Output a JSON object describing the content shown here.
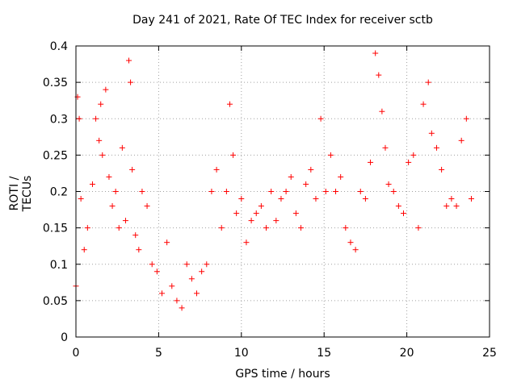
{
  "chart_data": {
    "type": "scatter",
    "title": "Day 241 of 2021, Rate Of TEC Index for receiver sctb",
    "xlabel": "GPS time / hours",
    "ylabel": "ROTI / TECUs",
    "xlim": [
      0,
      25
    ],
    "ylim": [
      0,
      0.4
    ],
    "x_ticks": [
      "0",
      "5",
      "10",
      "15",
      "20",
      "25"
    ],
    "y_ticks": [
      "0",
      "0.05",
      "0.1",
      "0.15",
      "0.2",
      "0.25",
      "0.3",
      "0.35",
      "0.4"
    ],
    "grid": true,
    "marker": "+",
    "series": [
      {
        "name": "ROTI",
        "color": "#ff0000",
        "x": [
          0.0,
          0.1,
          0.2,
          0.3,
          0.5,
          0.7,
          1.0,
          1.2,
          1.4,
          1.5,
          1.6,
          1.8,
          2.0,
          2.2,
          2.4,
          2.6,
          2.8,
          3.0,
          3.2,
          3.3,
          3.4,
          3.6,
          3.8,
          4.0,
          4.3,
          4.6,
          4.9,
          5.2,
          5.5,
          5.8,
          6.1,
          6.4,
          6.7,
          7.0,
          7.3,
          7.6,
          7.9,
          8.2,
          8.5,
          8.8,
          9.1,
          9.3,
          9.5,
          9.7,
          10.0,
          10.3,
          10.6,
          10.9,
          11.2,
          11.5,
          11.8,
          12.1,
          12.4,
          12.7,
          13.0,
          13.3,
          13.6,
          13.9,
          14.2,
          14.5,
          14.8,
          15.1,
          15.4,
          15.7,
          16.0,
          16.3,
          16.6,
          16.9,
          17.2,
          17.5,
          17.8,
          18.1,
          18.3,
          18.5,
          18.7,
          18.9,
          19.2,
          19.5,
          19.8,
          20.1,
          20.4,
          20.7,
          21.0,
          21.3,
          21.5,
          21.8,
          22.1,
          22.4,
          22.7,
          23.0,
          23.3,
          23.6,
          23.9
        ],
        "values": [
          0.07,
          0.33,
          0.3,
          0.19,
          0.12,
          0.15,
          0.21,
          0.3,
          0.27,
          0.32,
          0.25,
          0.34,
          0.22,
          0.18,
          0.2,
          0.15,
          0.26,
          0.16,
          0.38,
          0.35,
          0.23,
          0.14,
          0.12,
          0.2,
          0.18,
          0.1,
          0.09,
          0.06,
          0.13,
          0.07,
          0.05,
          0.04,
          0.1,
          0.08,
          0.06,
          0.09,
          0.1,
          0.2,
          0.23,
          0.15,
          0.2,
          0.32,
          0.25,
          0.17,
          0.19,
          0.13,
          0.16,
          0.17,
          0.18,
          0.15,
          0.2,
          0.16,
          0.19,
          0.2,
          0.22,
          0.17,
          0.15,
          0.21,
          0.23,
          0.19,
          0.3,
          0.2,
          0.25,
          0.2,
          0.22,
          0.15,
          0.13,
          0.12,
          0.2,
          0.19,
          0.24,
          0.39,
          0.36,
          0.31,
          0.26,
          0.21,
          0.2,
          0.18,
          0.17,
          0.24,
          0.25,
          0.15,
          0.32,
          0.35,
          0.28,
          0.26,
          0.23,
          0.18,
          0.19,
          0.18,
          0.27,
          0.3,
          0.19
        ]
      }
    ]
  }
}
